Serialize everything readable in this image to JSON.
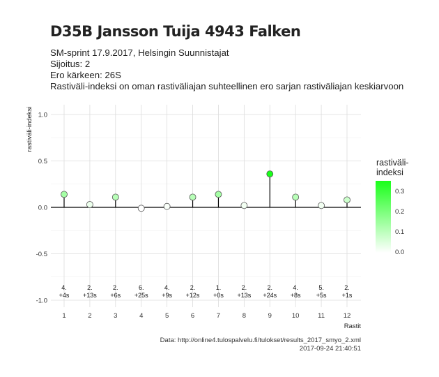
{
  "header": {
    "title": "D35B Jansson Tuija 4943 Falken",
    "subtitle_lines": [
      "SM-sprint 17.9.2017, Helsingin Suunnistajat",
      "Sijoitus: 2",
      "Ero kärkeen: 26S",
      "Rastiväli-indeksi on oman rastiväliajan suhteellinen ero sarjan rastiväliajan keskiarvoon"
    ]
  },
  "caption": {
    "line1": "Data: http://online4.tulospalvelu.fi/tulokset/results_2017_smyo_2.xml",
    "line2": "2017-09-24 21:40:51"
  },
  "legend": {
    "title": "rastiväli-\nindeksi",
    "ticks": [
      "0.3",
      "0.2",
      "0.1",
      "0.0"
    ],
    "tick_values": [
      0.3,
      0.2,
      0.1,
      0.0
    ],
    "range": [
      0,
      0.355
    ],
    "color_low": "#ffffff",
    "color_high": "#1aff1a"
  },
  "chart_data": {
    "type": "scatter",
    "style": "lollipop",
    "xlabel": "Rastit",
    "ylabel": "rastiväli-indeksi",
    "ylim": [
      -1.0,
      1.0
    ],
    "yticks": [
      1.0,
      0.5,
      0.0,
      -0.5,
      -1.0
    ],
    "ytick_labels": [
      "1.0",
      "0.5",
      "0.0",
      "-0.5",
      "-1.0"
    ],
    "x": [
      1,
      2,
      3,
      4,
      5,
      6,
      7,
      8,
      9,
      10,
      11,
      12
    ],
    "xtick_labels": [
      "1",
      "2",
      "3",
      "4",
      "5",
      "6",
      "7",
      "8",
      "9",
      "10",
      "11",
      "12"
    ],
    "values": [
      0.14,
      0.03,
      0.11,
      -0.01,
      0.01,
      0.11,
      0.14,
      0.02,
      0.36,
      0.11,
      0.02,
      0.08
    ],
    "annotations": [
      {
        "rank": "4.",
        "diff": "+4s"
      },
      {
        "rank": "2.",
        "diff": "+13s"
      },
      {
        "rank": "2.",
        "diff": "+6s"
      },
      {
        "rank": "6.",
        "diff": "+25s"
      },
      {
        "rank": "4.",
        "diff": "+9s"
      },
      {
        "rank": "2.",
        "diff": "+12s"
      },
      {
        "rank": "1.",
        "diff": "+0s"
      },
      {
        "rank": "2.",
        "diff": "+13s"
      },
      {
        "rank": "2.",
        "diff": "+24s"
      },
      {
        "rank": "4.",
        "diff": "+8s"
      },
      {
        "rank": "5.",
        "diff": "+5s"
      },
      {
        "rank": "2.",
        "diff": "+1s"
      }
    ],
    "grid": true,
    "legend_position": "right"
  }
}
